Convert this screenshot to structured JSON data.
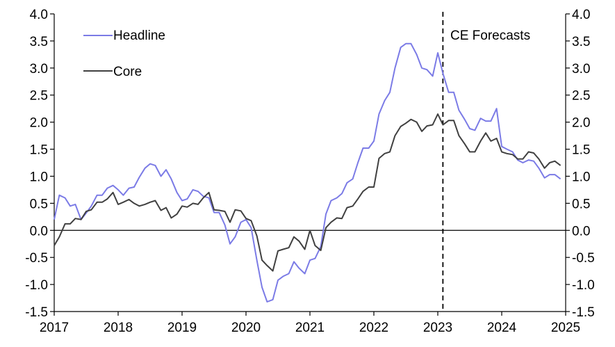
{
  "chart_data": {
    "type": "line",
    "title": "",
    "xlabel": "",
    "ylabel": "",
    "xlim": [
      2017,
      2025
    ],
    "ylim": [
      -1.5,
      4.0
    ],
    "x_ticks": [
      "2017",
      "2018",
      "2019",
      "2020",
      "2021",
      "2022",
      "2023",
      "2024",
      "2025"
    ],
    "y_ticks": [
      "4.0",
      "3.5",
      "3.0",
      "2.5",
      "2.0",
      "1.5",
      "1.0",
      "0.5",
      "0.0",
      "-0.5",
      "-1.0",
      "-1.5"
    ],
    "legend_position": "top-left",
    "forecast_start": 2023.08,
    "annotation": "CE Forecasts",
    "zero_line": true,
    "series": [
      {
        "name": "Headline",
        "color": "#7b7be6",
        "points": [
          [
            2017.0,
            0.2
          ],
          [
            2017.08,
            0.65
          ],
          [
            2017.17,
            0.6
          ],
          [
            2017.25,
            0.45
          ],
          [
            2017.33,
            0.48
          ],
          [
            2017.42,
            0.2
          ],
          [
            2017.5,
            0.32
          ],
          [
            2017.58,
            0.45
          ],
          [
            2017.67,
            0.65
          ],
          [
            2017.75,
            0.65
          ],
          [
            2017.83,
            0.78
          ],
          [
            2017.92,
            0.83
          ],
          [
            2018.0,
            0.75
          ],
          [
            2018.08,
            0.65
          ],
          [
            2018.17,
            0.78
          ],
          [
            2018.25,
            0.8
          ],
          [
            2018.33,
            0.98
          ],
          [
            2018.42,
            1.15
          ],
          [
            2018.5,
            1.23
          ],
          [
            2018.58,
            1.2
          ],
          [
            2018.67,
            1.0
          ],
          [
            2018.75,
            1.12
          ],
          [
            2018.83,
            0.95
          ],
          [
            2018.92,
            0.7
          ],
          [
            2019.0,
            0.55
          ],
          [
            2019.08,
            0.58
          ],
          [
            2019.17,
            0.75
          ],
          [
            2019.25,
            0.72
          ],
          [
            2019.33,
            0.63
          ],
          [
            2019.42,
            0.6
          ],
          [
            2019.5,
            0.33
          ],
          [
            2019.58,
            0.33
          ],
          [
            2019.67,
            0.1
          ],
          [
            2019.75,
            -0.25
          ],
          [
            2019.83,
            -0.12
          ],
          [
            2019.92,
            0.15
          ],
          [
            2020.0,
            0.2
          ],
          [
            2020.08,
            0.05
          ],
          [
            2020.17,
            -0.55
          ],
          [
            2020.25,
            -1.05
          ],
          [
            2020.33,
            -1.32
          ],
          [
            2020.42,
            -1.28
          ],
          [
            2020.5,
            -0.92
          ],
          [
            2020.58,
            -0.85
          ],
          [
            2020.67,
            -0.8
          ],
          [
            2020.75,
            -0.58
          ],
          [
            2020.83,
            -0.7
          ],
          [
            2020.92,
            -0.8
          ],
          [
            2021.0,
            -0.55
          ],
          [
            2021.08,
            -0.52
          ],
          [
            2021.17,
            -0.3
          ],
          [
            2021.25,
            0.3
          ],
          [
            2021.33,
            0.55
          ],
          [
            2021.42,
            0.6
          ],
          [
            2021.5,
            0.68
          ],
          [
            2021.58,
            0.88
          ],
          [
            2021.67,
            0.95
          ],
          [
            2021.75,
            1.25
          ],
          [
            2021.83,
            1.52
          ],
          [
            2021.92,
            1.52
          ],
          [
            2022.0,
            1.65
          ],
          [
            2022.08,
            2.15
          ],
          [
            2022.17,
            2.4
          ],
          [
            2022.25,
            2.55
          ],
          [
            2022.33,
            3.0
          ],
          [
            2022.42,
            3.38
          ],
          [
            2022.5,
            3.45
          ],
          [
            2022.58,
            3.45
          ],
          [
            2022.67,
            3.25
          ],
          [
            2022.75,
            3.0
          ],
          [
            2022.83,
            2.97
          ],
          [
            2022.92,
            2.85
          ],
          [
            2023.0,
            3.28
          ],
          [
            2023.08,
            2.9
          ],
          [
            2023.17,
            2.55
          ],
          [
            2023.25,
            2.55
          ],
          [
            2023.33,
            2.22
          ],
          [
            2023.42,
            2.05
          ],
          [
            2023.5,
            1.88
          ],
          [
            2023.58,
            1.85
          ],
          [
            2023.67,
            2.07
          ],
          [
            2023.75,
            2.02
          ],
          [
            2023.83,
            2.02
          ],
          [
            2023.92,
            2.25
          ],
          [
            2024.0,
            1.55
          ],
          [
            2024.08,
            1.5
          ],
          [
            2024.17,
            1.45
          ],
          [
            2024.25,
            1.3
          ],
          [
            2024.33,
            1.25
          ],
          [
            2024.42,
            1.3
          ],
          [
            2024.5,
            1.28
          ],
          [
            2024.58,
            1.15
          ],
          [
            2024.67,
            0.97
          ],
          [
            2024.75,
            1.03
          ],
          [
            2024.83,
            1.03
          ],
          [
            2024.92,
            0.95
          ]
        ]
      },
      {
        "name": "Core",
        "color": "#404040",
        "points": [
          [
            2017.0,
            -0.28
          ],
          [
            2017.08,
            -0.12
          ],
          [
            2017.17,
            0.12
          ],
          [
            2017.25,
            0.12
          ],
          [
            2017.33,
            0.22
          ],
          [
            2017.42,
            0.2
          ],
          [
            2017.5,
            0.35
          ],
          [
            2017.58,
            0.38
          ],
          [
            2017.67,
            0.52
          ],
          [
            2017.75,
            0.52
          ],
          [
            2017.83,
            0.58
          ],
          [
            2017.92,
            0.7
          ],
          [
            2018.0,
            0.48
          ],
          [
            2018.08,
            0.52
          ],
          [
            2018.17,
            0.57
          ],
          [
            2018.25,
            0.5
          ],
          [
            2018.33,
            0.45
          ],
          [
            2018.42,
            0.48
          ],
          [
            2018.5,
            0.52
          ],
          [
            2018.58,
            0.55
          ],
          [
            2018.67,
            0.37
          ],
          [
            2018.75,
            0.42
          ],
          [
            2018.83,
            0.23
          ],
          [
            2018.92,
            0.3
          ],
          [
            2019.0,
            0.45
          ],
          [
            2019.08,
            0.43
          ],
          [
            2019.17,
            0.5
          ],
          [
            2019.25,
            0.48
          ],
          [
            2019.33,
            0.6
          ],
          [
            2019.42,
            0.7
          ],
          [
            2019.5,
            0.38
          ],
          [
            2019.58,
            0.37
          ],
          [
            2019.67,
            0.35
          ],
          [
            2019.75,
            0.15
          ],
          [
            2019.83,
            0.38
          ],
          [
            2019.92,
            0.36
          ],
          [
            2020.0,
            0.22
          ],
          [
            2020.08,
            0.18
          ],
          [
            2020.17,
            -0.1
          ],
          [
            2020.25,
            -0.55
          ],
          [
            2020.33,
            -0.65
          ],
          [
            2020.42,
            -0.75
          ],
          [
            2020.5,
            -0.38
          ],
          [
            2020.58,
            -0.35
          ],
          [
            2020.67,
            -0.32
          ],
          [
            2020.75,
            -0.12
          ],
          [
            2020.83,
            -0.2
          ],
          [
            2020.92,
            -0.35
          ],
          [
            2021.0,
            0.0
          ],
          [
            2021.08,
            -0.28
          ],
          [
            2021.17,
            -0.37
          ],
          [
            2021.25,
            0.05
          ],
          [
            2021.33,
            0.15
          ],
          [
            2021.42,
            0.23
          ],
          [
            2021.5,
            0.22
          ],
          [
            2021.58,
            0.42
          ],
          [
            2021.67,
            0.45
          ],
          [
            2021.75,
            0.58
          ],
          [
            2021.83,
            0.72
          ],
          [
            2021.92,
            0.8
          ],
          [
            2022.0,
            0.8
          ],
          [
            2022.08,
            1.33
          ],
          [
            2022.17,
            1.42
          ],
          [
            2022.25,
            1.45
          ],
          [
            2022.33,
            1.75
          ],
          [
            2022.42,
            1.92
          ],
          [
            2022.5,
            1.98
          ],
          [
            2022.58,
            2.05
          ],
          [
            2022.67,
            2.0
          ],
          [
            2022.75,
            1.83
          ],
          [
            2022.83,
            1.93
          ],
          [
            2022.92,
            1.95
          ],
          [
            2023.0,
            2.15
          ],
          [
            2023.08,
            1.95
          ],
          [
            2023.17,
            2.03
          ],
          [
            2023.25,
            2.03
          ],
          [
            2023.33,
            1.75
          ],
          [
            2023.42,
            1.6
          ],
          [
            2023.5,
            1.45
          ],
          [
            2023.58,
            1.45
          ],
          [
            2023.67,
            1.65
          ],
          [
            2023.75,
            1.8
          ],
          [
            2023.83,
            1.65
          ],
          [
            2023.92,
            1.7
          ],
          [
            2024.0,
            1.45
          ],
          [
            2024.08,
            1.42
          ],
          [
            2024.17,
            1.4
          ],
          [
            2024.25,
            1.32
          ],
          [
            2024.33,
            1.32
          ],
          [
            2024.42,
            1.45
          ],
          [
            2024.5,
            1.43
          ],
          [
            2024.58,
            1.32
          ],
          [
            2024.67,
            1.15
          ],
          [
            2024.75,
            1.25
          ],
          [
            2024.83,
            1.28
          ],
          [
            2024.92,
            1.2
          ]
        ]
      }
    ]
  }
}
